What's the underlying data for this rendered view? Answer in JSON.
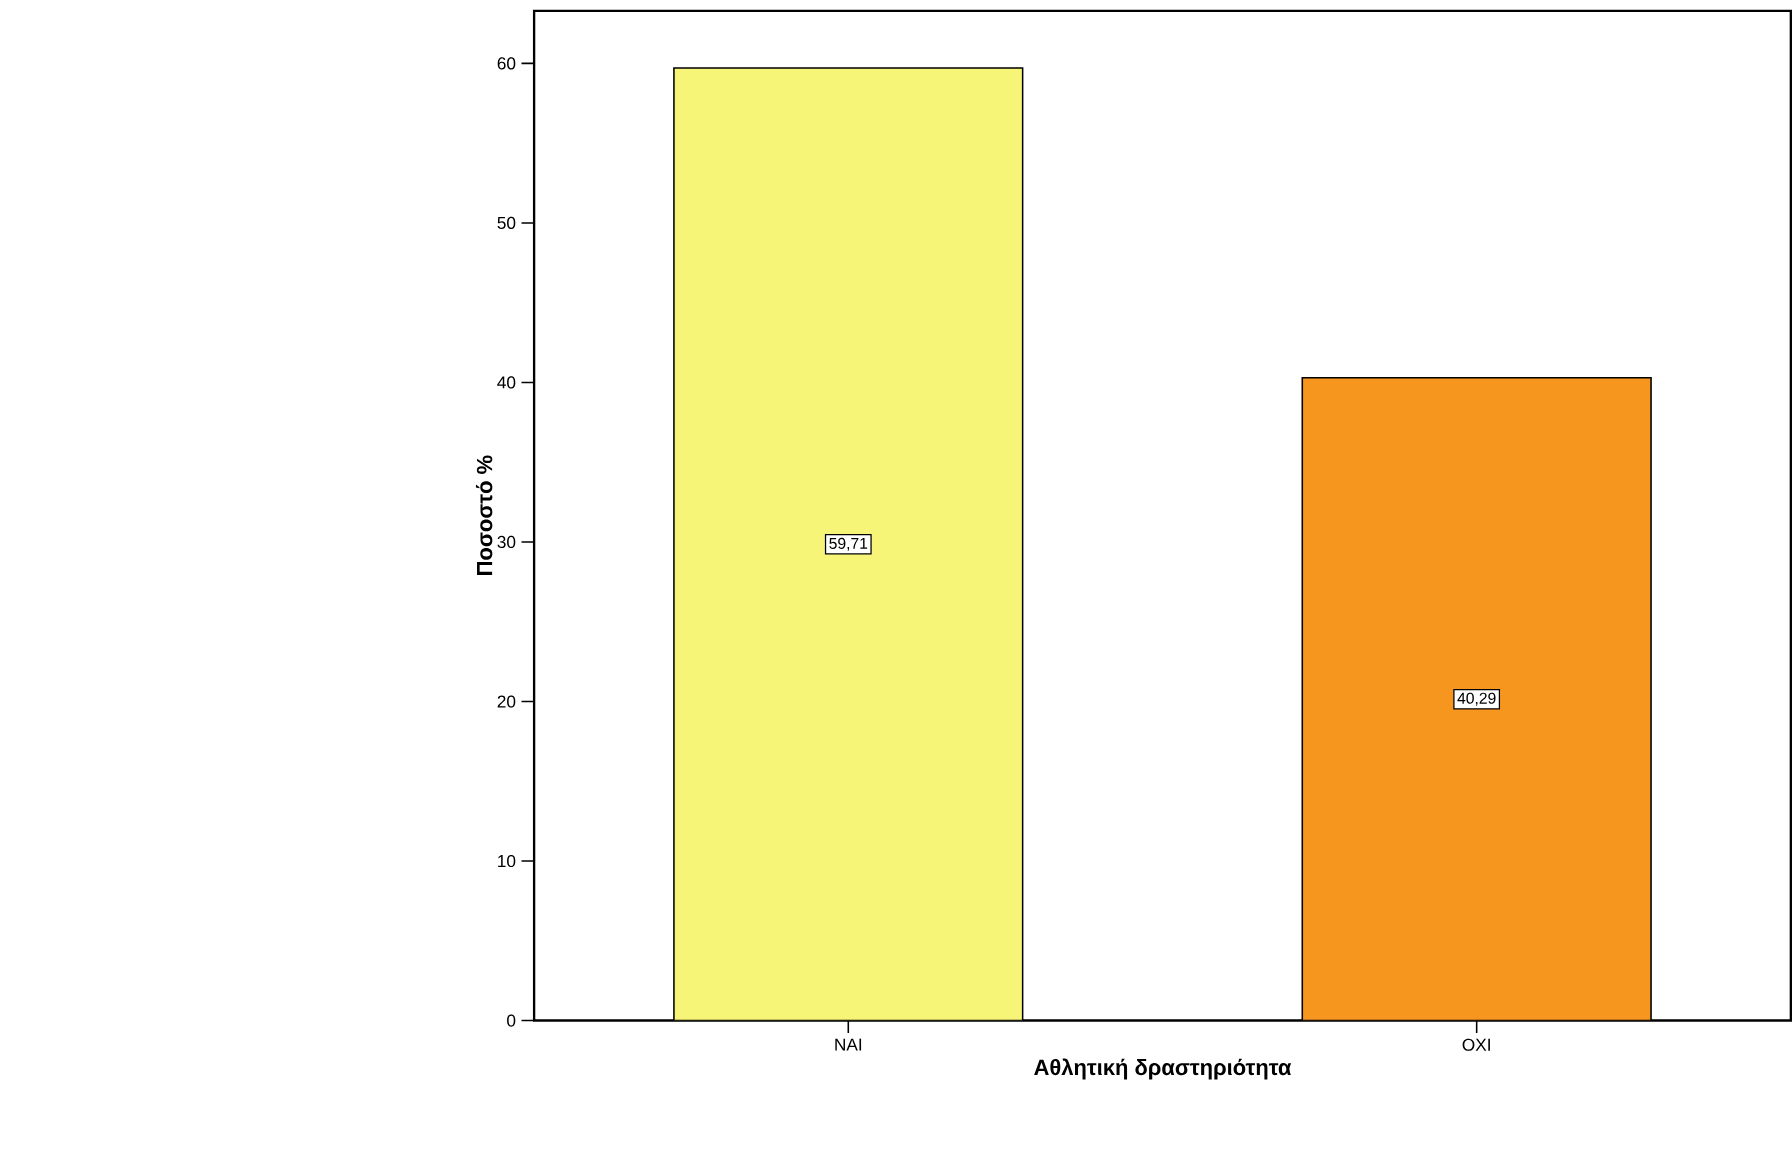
{
  "chart_data": {
    "type": "bar",
    "xlabel": "Αθλητική δραστηριότητα",
    "ylabel": "Ποσοστό %",
    "categories": [
      "NAI",
      "OXI"
    ],
    "values": [
      59.71,
      40.29
    ],
    "colors": [
      "#f7f577",
      "#f7961f"
    ],
    "value_labels": [
      "59,71",
      "40,29"
    ],
    "ylim": [
      0,
      63.3
    ],
    "yticks": [
      0,
      10,
      20,
      30,
      40,
      50,
      60
    ],
    "grid": false
  }
}
